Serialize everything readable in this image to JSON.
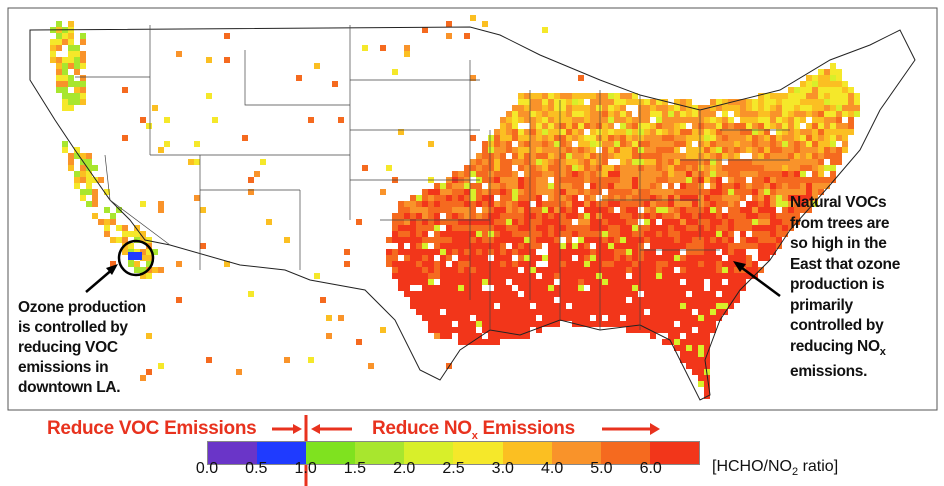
{
  "annotations": {
    "west": [
      "Ozone production",
      "is controlled by",
      "reducing VOC",
      "emissions in",
      "downtown LA."
    ],
    "east_lines": [
      "Natural VOCs",
      "from trees are",
      "so high in the",
      "East that ozone",
      "production is",
      "primarily",
      "controlled by"
    ],
    "east_last_prefix": "reducing NO",
    "east_last_sub": "x",
    "east_end": "emissions."
  },
  "regimes": {
    "voc": "Reduce VOC Emissions",
    "nox_prefix": "Reduce NO",
    "nox_sub": "x",
    "nox_suffix": " Emissions"
  },
  "colorbar": {
    "colors": [
      "#6a35c8",
      "#1f3bff",
      "#7fe21f",
      "#a8e62e",
      "#d8ef2a",
      "#f5e82a",
      "#fbbf22",
      "#f9932a",
      "#f56a1f",
      "#f2361a"
    ],
    "ticks": [
      "0.0",
      "0.5",
      "1.0",
      "1.5",
      "2.0",
      "2.5",
      "3.0",
      "4.0",
      "5.0",
      "6.0"
    ],
    "unit_prefix": "[HCHO/NO",
    "unit_sub": "2",
    "unit_suffix": " ratio]",
    "threshold": "1.0"
  },
  "colors": {
    "regime_red": "#e8321e"
  }
}
